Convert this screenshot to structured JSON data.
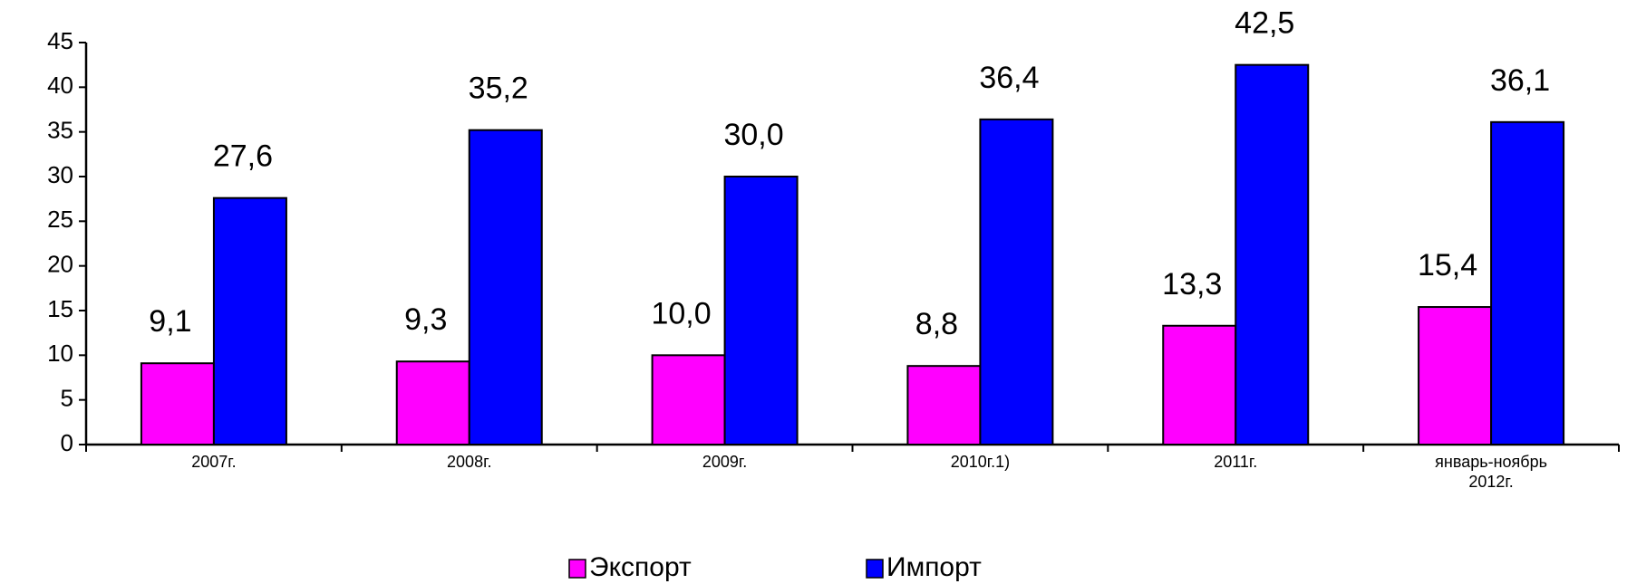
{
  "chart_data": {
    "type": "bar",
    "categories": [
      "2007г.",
      "2008г.",
      "2009г.",
      "2010г.1)",
      "2011г.",
      "январь-ноябрь 2012г."
    ],
    "series": [
      {
        "name": "Экспорт",
        "color": "#ff00ff",
        "values": [
          9.1,
          9.3,
          10.0,
          8.8,
          13.3,
          15.4
        ],
        "value_labels": [
          "9,1",
          "9,3",
          "10,0",
          "8,8",
          "13,3",
          "15,4"
        ]
      },
      {
        "name": "Импорт",
        "color": "#0000ff",
        "values": [
          27.6,
          35.2,
          30.0,
          36.4,
          42.5,
          36.1
        ],
        "value_labels": [
          "27,6",
          "35,2",
          "30,0",
          "36,4",
          "42,5",
          "36,1"
        ]
      }
    ],
    "ylim": [
      0,
      45
    ],
    "yticks": [
      0,
      5,
      10,
      15,
      20,
      25,
      30,
      35,
      40,
      45
    ],
    "grid": false,
    "legend": "bottom"
  }
}
